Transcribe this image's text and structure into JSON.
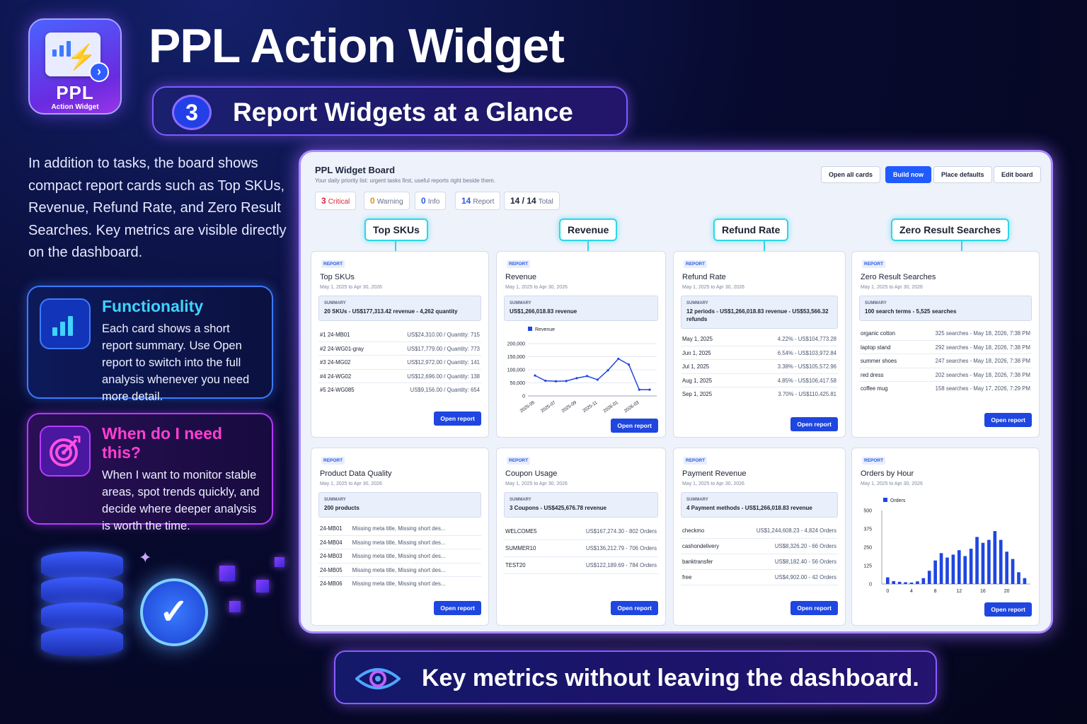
{
  "header": {
    "logo_name": "PPL",
    "logo_sub": "Action Widget",
    "title": "PPL Action Widget",
    "step_number": "3",
    "subtitle": "Report Widgets at a Glance"
  },
  "intro": "In addition to tasks, the board shows compact report cards such as Top SKUs, Revenue, Refund Rate, and Zero Result Searches. Key metrics are visible directly on the dashboard.",
  "functionality": {
    "title": "Functionality",
    "text": "Each card shows a short report summary. Use Open report to switch into the full analysis whenever you need more detail.",
    "icon": "bar-chart-icon"
  },
  "when": {
    "title": "When do I need this?",
    "text": "When I want to monitor stable areas, spot trends quickly, and decide where deeper analysis is worth the time.",
    "icon": "target-icon"
  },
  "banner": {
    "text": "Key metrics without leaving the dashboard.",
    "icon": "eye-icon"
  },
  "board": {
    "title": "PPL Widget Board",
    "subtitle": "Your daily priority list: urgent tasks first, useful reports right beside them.",
    "buttons": {
      "open_all": "Open all cards",
      "build_now": "Build now",
      "place_defaults": "Place defaults",
      "edit_board": "Edit board"
    },
    "chips": [
      {
        "count": "3",
        "label": "Critical",
        "color": "#d6263b"
      },
      {
        "count": "0",
        "label": "Warning",
        "color": "#e88a1a"
      },
      {
        "count": "0",
        "label": "Info",
        "color": "#2b5be0"
      },
      {
        "count": "14",
        "label": "Report",
        "color": "#2b5be0"
      },
      {
        "count": "14 / 14",
        "label": "Total",
        "color": "#1b2233"
      }
    ],
    "callouts": [
      "Top SKUs",
      "Revenue",
      "Refund Rate",
      "Zero Result Searches"
    ],
    "tag": "REPORT",
    "summary_label": "SUMMARY",
    "open_report": "Open report",
    "date_range": "May 1, 2025 to Apr 30, 2026",
    "cards": {
      "top_skus": {
        "title": "Top SKUs",
        "summary": "20 SKUs - US$177,313.42 revenue - 4,262 quantity",
        "rows": [
          [
            "#1 24-MB01",
            "US$24,310.00 / Quantity: 715"
          ],
          [
            "#2 24-WG01-gray",
            "US$17,779.00 / Quantity: 773"
          ],
          [
            "#3 24-MG02",
            "US$12,972.00 / Quantity: 141"
          ],
          [
            "#4 24-WG02",
            "US$12,696.00 / Quantity: 138"
          ],
          [
            "#5 24-WG085",
            "US$9,156.00 / Quantity: 654"
          ]
        ]
      },
      "revenue": {
        "title": "Revenue",
        "summary": "US$1,266,018.83 revenue"
      },
      "refund_rate": {
        "title": "Refund Rate",
        "summary": "12 periods - US$1,266,018.83 revenue - US$53,566.32 refunds",
        "rows": [
          [
            "May 1, 2025",
            "4.22% - US$104,773.28"
          ],
          [
            "Jun 1, 2025",
            "6.54% - US$103,972.84"
          ],
          [
            "Jul 1, 2025",
            "3.38% - US$105,572.96"
          ],
          [
            "Aug 1, 2025",
            "4.85% - US$106,417.58"
          ],
          [
            "Sep 1, 2025",
            "3.70% - US$110,425.81"
          ]
        ]
      },
      "zero_results": {
        "title": "Zero Result Searches",
        "summary": "100 search terms - 5,525 searches",
        "rows": [
          [
            "organic cotton",
            "325 searches - May 18, 2026, 7:38 PM"
          ],
          [
            "laptop stand",
            "292 searches - May 18, 2026, 7:38 PM"
          ],
          [
            "summer shoes",
            "247 searches - May 18, 2026, 7:38 PM"
          ],
          [
            "red dress",
            "202 searches - May 18, 2026, 7:38 PM"
          ],
          [
            "coffee mug",
            "158 searches - May 17, 2026, 7:29 PM"
          ]
        ]
      },
      "product_quality": {
        "title": "Product Data Quality",
        "summary": "200 products",
        "rows": [
          [
            "24-MB01",
            "Missing meta title, Missing short des..."
          ],
          [
            "24-MB04",
            "Missing meta title, Missing short des..."
          ],
          [
            "24-MB03",
            "Missing meta title, Missing short des..."
          ],
          [
            "24-MB05",
            "Missing meta title, Missing short des..."
          ],
          [
            "24-MB06",
            "Missing meta title, Missing short des..."
          ]
        ]
      },
      "coupon_usage": {
        "title": "Coupon Usage",
        "summary": "3 Coupons - US$425,676.78 revenue",
        "rows": [
          [
            "WELCOME5",
            "US$167,274.30 - 802 Orders"
          ],
          [
            "SUMMER10",
            "US$136,212.79 - 706 Orders"
          ],
          [
            "TEST20",
            "US$122,189.69 - 784 Orders"
          ]
        ]
      },
      "payment_revenue": {
        "title": "Payment Revenue",
        "summary": "4 Payment methods - US$1,266,018.83 revenue",
        "rows": [
          [
            "checkmo",
            "US$1,244,608.23 - 4,824 Orders"
          ],
          [
            "cashondelivery",
            "US$8,326.20 - 66 Orders"
          ],
          [
            "banktransfer",
            "US$8,182.40 - 56 Orders"
          ],
          [
            "free",
            "US$4,902.00 - 42 Orders"
          ]
        ]
      },
      "orders_by_hour": {
        "title": "Orders by Hour"
      }
    }
  },
  "chart_data": [
    {
      "type": "line",
      "title": "Revenue",
      "series": [
        {
          "name": "Revenue",
          "values": [
            78000,
            58000,
            56000,
            57000,
            68000,
            76000,
            62000,
            98000,
            142000,
            120000,
            24000,
            24000
          ]
        }
      ],
      "x": [
        "2025-05",
        "2025-06",
        "2025-07",
        "2025-08",
        "2025-09",
        "2025-10",
        "2025-11",
        "2025-12",
        "2026-01",
        "2026-02",
        "2026-03",
        "2026-04"
      ],
      "x_tick_labels": [
        "2025-05",
        "2025-07",
        "2025-09",
        "2025-11",
        "2026-01",
        "2026-03"
      ],
      "y_ticks": [
        "200,000",
        "150,000",
        "100,000",
        "50,000",
        "0"
      ],
      "ylim": [
        0,
        200000
      ],
      "color": "#1f46e0",
      "legend": "top-left"
    },
    {
      "type": "bar",
      "title": "Orders by Hour",
      "series": [
        {
          "name": "Orders",
          "values": [
            45,
            20,
            15,
            12,
            10,
            18,
            40,
            90,
            160,
            210,
            180,
            200,
            230,
            190,
            240,
            320,
            280,
            300,
            360,
            300,
            220,
            170,
            80,
            40
          ]
        }
      ],
      "categories": [
        0,
        1,
        2,
        3,
        4,
        5,
        6,
        7,
        8,
        9,
        10,
        11,
        12,
        13,
        14,
        15,
        16,
        17,
        18,
        19,
        20,
        21,
        22,
        23
      ],
      "x_tick_labels": [
        "0",
        "4",
        "8",
        "12",
        "16",
        "20"
      ],
      "y_ticks": [
        "500",
        "375",
        "250",
        "125",
        "0"
      ],
      "ylim": [
        0,
        500
      ],
      "color": "#1f46e0",
      "legend": "top-left"
    }
  ]
}
